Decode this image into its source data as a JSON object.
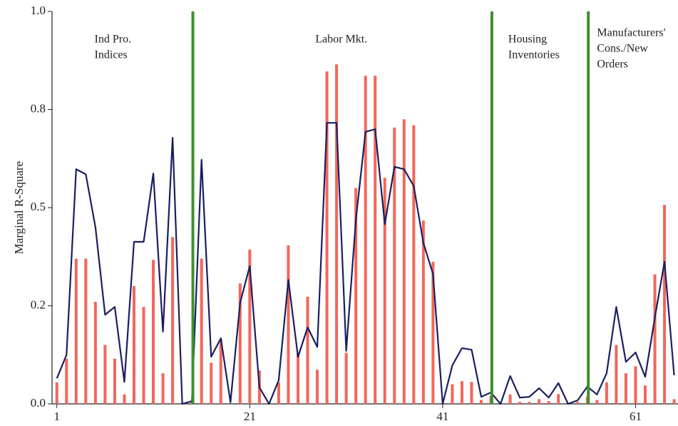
{
  "chart_data": {
    "type": "bar_line",
    "y_label": "Marginal R-Square",
    "x": [
      1,
      2,
      3,
      4,
      5,
      6,
      7,
      8,
      9,
      10,
      11,
      12,
      13,
      14,
      15,
      16,
      17,
      18,
      19,
      20,
      21,
      22,
      23,
      24,
      25,
      26,
      27,
      28,
      29,
      30,
      31,
      32,
      33,
      34,
      35,
      36,
      37,
      38,
      39,
      40,
      41,
      42,
      43,
      44,
      45,
      46,
      47,
      48,
      49,
      50,
      51,
      52,
      53,
      54,
      55,
      56,
      57,
      58,
      59,
      60,
      61,
      62,
      63,
      64,
      65
    ],
    "series": [
      {
        "type": "bar",
        "color": "#f2665c",
        "values": [
          0.055,
          0.115,
          0.37,
          0.37,
          0.26,
          0.15,
          0.115,
          0.024,
          0.3,
          0.247,
          0.367,
          0.078,
          0.425,
          0,
          0.005,
          0.37,
          0.105,
          0.164,
          0,
          0.307,
          0.393,
          0.085,
          0,
          0.055,
          0.404,
          0.13,
          0.273,
          0.087,
          0.847,
          0.865,
          0.13,
          0.55,
          0.836,
          0.836,
          0.576,
          0.704,
          0.725,
          0.71,
          0.467,
          0.362,
          0,
          0.05,
          0.058,
          0.056,
          0.01,
          0.02,
          0,
          0.024,
          0.005,
          0.005,
          0.012,
          0.007,
          0.025,
          0,
          0.005,
          0.018,
          0.01,
          0.055,
          0.15,
          0.078,
          0.096,
          0.047,
          0.33,
          0.507,
          0.012
        ]
      },
      {
        "type": "line",
        "color": "#1b1f5f",
        "values": [
          0.065,
          0.125,
          0.598,
          0.585,
          0.45,
          0.227,
          0.247,
          0.056,
          0.413,
          0.413,
          0.587,
          0.184,
          0.678,
          0,
          0.007,
          0.622,
          0.12,
          0.167,
          0.004,
          0.258,
          0.351,
          0.042,
          0,
          0.06,
          0.316,
          0.12,
          0.195,
          0.145,
          0.716,
          0.716,
          0.135,
          0.469,
          0.693,
          0.7,
          0.458,
          0.604,
          0.598,
          0.555,
          0.41,
          0.331,
          0,
          0.098,
          0.142,
          0.138,
          0.018,
          0.029,
          0,
          0.071,
          0.016,
          0.018,
          0.04,
          0.016,
          0.053,
          0,
          0.009,
          0.044,
          0.024,
          0.078,
          0.247,
          0.107,
          0.131,
          0.069,
          0.22,
          0.362,
          0.073
        ]
      }
    ],
    "vlines": [
      15.1,
      46.1,
      56.1
    ],
    "vline_color": "#3d8f30",
    "annotations": [
      {
        "x": 4.9,
        "lines": [
          "Ind Pro.",
          "Indices"
        ]
      },
      {
        "x": 27.8,
        "lines": [
          "Labor Mkt."
        ]
      },
      {
        "x": 47.8,
        "lines": [
          "Housing",
          "Inventories"
        ]
      },
      {
        "x": 57.0,
        "lines": [
          "Manufacturers'",
          "Cons./New",
          "Orders"
        ]
      }
    ],
    "xlim": [
      0.5,
      65.4
    ],
    "xticks": [
      1,
      21,
      41,
      61
    ],
    "ylim": [
      0,
      1
    ],
    "yticks": [
      {
        "value": 0,
        "label": "0.0"
      },
      {
        "value": 0.25,
        "label": "0.2"
      },
      {
        "value": 0.5,
        "label": "0.5"
      },
      {
        "value": 0.75,
        "label": "0.8"
      },
      {
        "value": 1,
        "label": "1.0"
      }
    ]
  }
}
